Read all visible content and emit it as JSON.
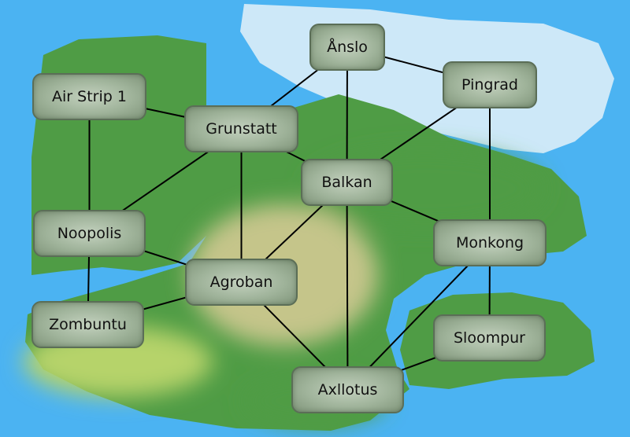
{
  "colors": {
    "sea": "#4bb3f2",
    "ice": "#cde8f8",
    "forest": "#4f9c45",
    "plains": "#c5c58a",
    "meadow": "#b6d36a",
    "node_border": "#5b6e57",
    "edge": "#000000"
  },
  "nodes": [
    {
      "id": "anslo",
      "label": "Ånslo"
    },
    {
      "id": "pingrad",
      "label": "Pingrad"
    },
    {
      "id": "airstrip",
      "label": "Air Strip 1"
    },
    {
      "id": "grunstatt",
      "label": "Grunstatt"
    },
    {
      "id": "balkan",
      "label": "Balkan"
    },
    {
      "id": "noopolis",
      "label": "Noopolis"
    },
    {
      "id": "monkong",
      "label": "Monkong"
    },
    {
      "id": "agroban",
      "label": "Agroban"
    },
    {
      "id": "zombuntu",
      "label": "Zombuntu"
    },
    {
      "id": "sloompur",
      "label": "Sloompur"
    },
    {
      "id": "axllotus",
      "label": "Axllotus"
    }
  ],
  "edges": [
    [
      "anslo",
      "pingrad"
    ],
    [
      "anslo",
      "grunstatt"
    ],
    [
      "anslo",
      "balkan"
    ],
    [
      "pingrad",
      "balkan"
    ],
    [
      "pingrad",
      "monkong"
    ],
    [
      "airstrip",
      "grunstatt"
    ],
    [
      "airstrip",
      "noopolis"
    ],
    [
      "grunstatt",
      "balkan"
    ],
    [
      "grunstatt",
      "noopolis"
    ],
    [
      "grunstatt",
      "agroban"
    ],
    [
      "balkan",
      "monkong"
    ],
    [
      "balkan",
      "agroban"
    ],
    [
      "balkan",
      "axllotus"
    ],
    [
      "noopolis",
      "agroban"
    ],
    [
      "noopolis",
      "zombuntu"
    ],
    [
      "agroban",
      "zombuntu"
    ],
    [
      "agroban",
      "axllotus"
    ],
    [
      "monkong",
      "sloompur"
    ],
    [
      "monkong",
      "axllotus"
    ],
    [
      "sloompur",
      "axllotus"
    ]
  ]
}
